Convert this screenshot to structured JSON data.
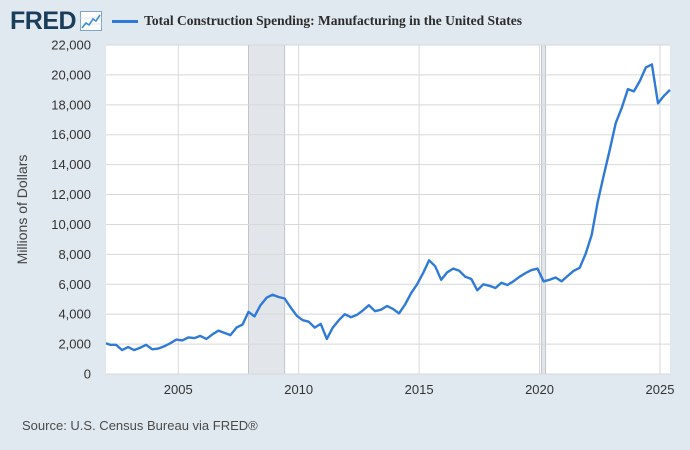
{
  "header": {
    "logo_text": "FRED",
    "series_title": "Total Construction Spending: Manufacturing in the United States",
    "series_color": "#2f7ad8"
  },
  "source": "Source: U.S. Census Bureau via FRED®",
  "colors": {
    "background": "#e1e9f0",
    "plot_bg": "#ffffff",
    "grid": "#d8d8d8",
    "recession": "#e2e6ea",
    "line": "#2f7ad8"
  },
  "chart_data": {
    "type": "line",
    "title": "",
    "xlabel": "",
    "ylabel": "Millions of Dollars",
    "ylim": [
      0,
      22000
    ],
    "xlim": [
      "2002-01",
      "2025-06"
    ],
    "grid": true,
    "yticks": [
      0,
      2000,
      4000,
      6000,
      8000,
      10000,
      12000,
      14000,
      16000,
      18000,
      20000,
      22000
    ],
    "ytick_labels": [
      "0",
      "2,000",
      "4,000",
      "6,000",
      "8,000",
      "10,000",
      "12,000",
      "14,000",
      "16,000",
      "18,000",
      "20,000",
      "22,000"
    ],
    "xticks": [
      "2005-01",
      "2010-01",
      "2015-01",
      "2020-01",
      "2025-01"
    ],
    "xtick_labels": [
      "2005",
      "2010",
      "2015",
      "2020",
      "2025"
    ],
    "recessions": [
      [
        "2007-12",
        "2009-06"
      ],
      [
        "2020-02",
        "2020-04"
      ]
    ],
    "series": [
      {
        "color": "#2f7ad8",
        "x": [
          "2002-01",
          "2002-03",
          "2002-06",
          "2002-09",
          "2002-12",
          "2003-03",
          "2003-06",
          "2003-09",
          "2003-12",
          "2004-03",
          "2004-06",
          "2004-09",
          "2004-12",
          "2005-03",
          "2005-06",
          "2005-09",
          "2005-12",
          "2006-03",
          "2006-06",
          "2006-09",
          "2006-12",
          "2007-03",
          "2007-06",
          "2007-09",
          "2007-12",
          "2008-03",
          "2008-06",
          "2008-09",
          "2008-12",
          "2009-03",
          "2009-06",
          "2009-09",
          "2009-12",
          "2010-03",
          "2010-06",
          "2010-09",
          "2010-12",
          "2011-03",
          "2011-06",
          "2011-09",
          "2011-12",
          "2012-03",
          "2012-06",
          "2012-09",
          "2012-12",
          "2013-03",
          "2013-06",
          "2013-09",
          "2013-12",
          "2014-03",
          "2014-06",
          "2014-09",
          "2014-12",
          "2015-03",
          "2015-06",
          "2015-09",
          "2015-12",
          "2016-03",
          "2016-06",
          "2016-09",
          "2016-12",
          "2017-03",
          "2017-06",
          "2017-09",
          "2017-12",
          "2018-03",
          "2018-06",
          "2018-09",
          "2018-12",
          "2019-03",
          "2019-06",
          "2019-09",
          "2019-12",
          "2020-03",
          "2020-06",
          "2020-09",
          "2020-12",
          "2021-03",
          "2021-06",
          "2021-09",
          "2021-12",
          "2022-03",
          "2022-06",
          "2022-09",
          "2022-12",
          "2023-03",
          "2023-06",
          "2023-09",
          "2023-12",
          "2024-03",
          "2024-06",
          "2024-09",
          "2024-12",
          "2025-03",
          "2025-06"
        ],
        "values": [
          2050,
          1950,
          1950,
          1600,
          1800,
          1600,
          1750,
          1950,
          1650,
          1700,
          1850,
          2050,
          2300,
          2250,
          2450,
          2400,
          2550,
          2350,
          2650,
          2900,
          2750,
          2600,
          3100,
          3300,
          4150,
          3850,
          4600,
          5100,
          5300,
          5150,
          5050,
          4450,
          3900,
          3600,
          3500,
          3100,
          3350,
          2350,
          3100,
          3600,
          4000,
          3800,
          3950,
          4250,
          4600,
          4200,
          4300,
          4550,
          4350,
          4050,
          4650,
          5400,
          6000,
          6750,
          7600,
          7200,
          6300,
          6800,
          7050,
          6900,
          6500,
          6350,
          5600,
          6000,
          5900,
          5750,
          6100,
          5950,
          6200,
          6500,
          6750,
          6950,
          7050,
          6200,
          6300,
          6450,
          6200,
          6550,
          6900,
          7100,
          8050,
          9300,
          11500,
          13300,
          15000,
          16800,
          17800,
          19050,
          18900,
          19600,
          20500,
          20700,
          18100,
          18600,
          19000
        ]
      }
    ]
  }
}
